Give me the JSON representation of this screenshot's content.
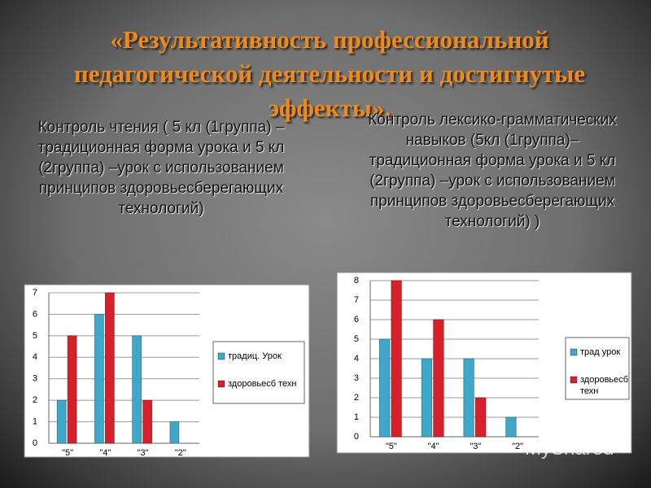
{
  "title": "«Результативность профессиональной педагогической деятельности и достигнутые эффекты».",
  "watermark": "MyShared",
  "chart_data": [
    {
      "type": "bar",
      "title": "Контроль чтения ( 5 кл (1группа) –традиционная форма урока и 5 кл (2группа) –урок с использованием принципов здоровьесберегающих технологий)",
      "categories": [
        "\"5\"",
        "\"4\"",
        "\"3\"",
        "\"2\""
      ],
      "series": [
        {
          "name": "традиц. Урок",
          "color": "#3fa7c9",
          "values": [
            2,
            6,
            5,
            1
          ]
        },
        {
          "name": "здоровьесб техн",
          "color": "#d8202a",
          "values": [
            5,
            7,
            2,
            0
          ]
        }
      ],
      "ylim": [
        0,
        7
      ],
      "yticks": [
        0,
        1,
        2,
        3,
        4,
        5,
        6,
        7
      ],
      "grid": true,
      "legend": "right"
    },
    {
      "type": "bar",
      "title": "Контроль лексико-грамматических навыков (5кл (1группа)–традиционная форма урока и 5 кл (2группа) –урок с использованием принципов здоровьесберегающих технологий) )",
      "categories": [
        "\"5\"",
        "\"4\"",
        "\"3\"",
        "\"2\""
      ],
      "series": [
        {
          "name": "трад урок",
          "color": "#3fa7c9",
          "values": [
            5,
            4,
            4,
            1
          ]
        },
        {
          "name": "здоровьесб техн",
          "color": "#d8202a",
          "values": [
            8,
            6,
            2,
            0
          ]
        }
      ],
      "ylim": [
        0,
        8
      ],
      "yticks": [
        0,
        1,
        2,
        3,
        4,
        5,
        6,
        7,
        8
      ],
      "grid": true,
      "legend": "right"
    }
  ]
}
